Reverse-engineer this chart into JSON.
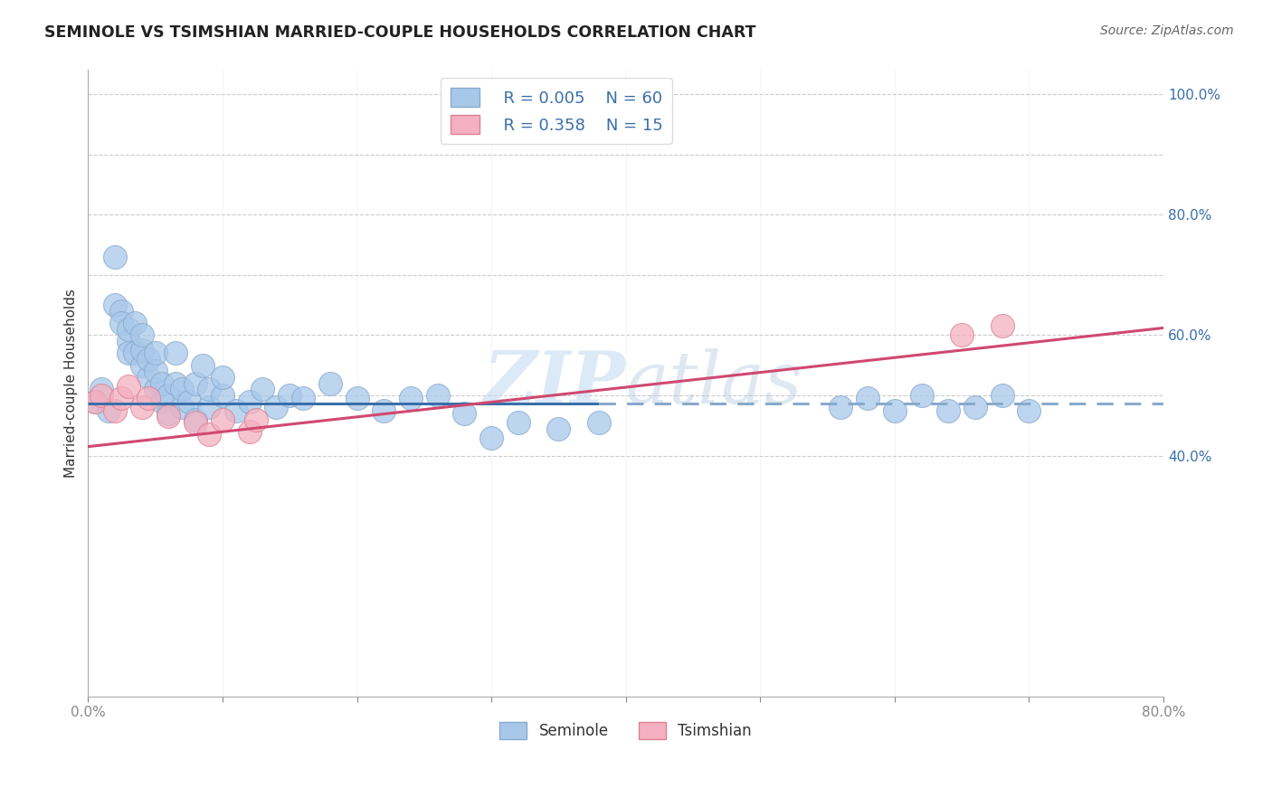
{
  "title": "SEMINOLE VS TSIMSHIAN MARRIED-COUPLE HOUSEHOLDS CORRELATION CHART",
  "source": "Source: ZipAtlas.com",
  "ylabel": "Married-couple Households",
  "background_color": "#ffffff",
  "legend_R1": "R = 0.005",
  "legend_N1": "N = 60",
  "legend_R2": "R = 0.358",
  "legend_N2": "N = 15",
  "seminole_color": "#a8c8ea",
  "tsimshian_color": "#f4b0c0",
  "seminole_edge": "#88aacc",
  "tsimshian_edge": "#dd8090",
  "line_seminole_color": "#3a6faa",
  "line_tsimshian_color": "#d04870",
  "grid_color": "#cccccc",
  "seminole_x": [
    0.005,
    0.01,
    0.015,
    0.02,
    0.02,
    0.025,
    0.025,
    0.03,
    0.03,
    0.03,
    0.035,
    0.035,
    0.04,
    0.04,
    0.04,
    0.045,
    0.045,
    0.05,
    0.05,
    0.05,
    0.055,
    0.055,
    0.06,
    0.06,
    0.065,
    0.065,
    0.07,
    0.07,
    0.075,
    0.08,
    0.08,
    0.085,
    0.09,
    0.09,
    0.1,
    0.1,
    0.11,
    0.12,
    0.13,
    0.14,
    0.15,
    0.16,
    0.18,
    0.2,
    0.22,
    0.24,
    0.26,
    0.28,
    0.3,
    0.32,
    0.35,
    0.38,
    0.56,
    0.58,
    0.6,
    0.62,
    0.64,
    0.66,
    0.68,
    0.7
  ],
  "seminole_y": [
    0.49,
    0.51,
    0.475,
    0.65,
    0.73,
    0.64,
    0.62,
    0.59,
    0.61,
    0.57,
    0.57,
    0.62,
    0.55,
    0.575,
    0.6,
    0.53,
    0.56,
    0.51,
    0.54,
    0.57,
    0.49,
    0.52,
    0.47,
    0.5,
    0.52,
    0.57,
    0.48,
    0.51,
    0.49,
    0.46,
    0.52,
    0.55,
    0.48,
    0.51,
    0.5,
    0.53,
    0.475,
    0.49,
    0.51,
    0.48,
    0.5,
    0.495,
    0.52,
    0.495,
    0.475,
    0.495,
    0.5,
    0.47,
    0.43,
    0.455,
    0.445,
    0.455,
    0.48,
    0.495,
    0.475,
    0.5,
    0.475,
    0.48,
    0.5,
    0.475
  ],
  "tsimshian_x": [
    0.005,
    0.01,
    0.02,
    0.025,
    0.03,
    0.04,
    0.045,
    0.06,
    0.08,
    0.09,
    0.1,
    0.12,
    0.125,
    0.65,
    0.68
  ],
  "tsimshian_y": [
    0.49,
    0.5,
    0.475,
    0.495,
    0.515,
    0.48,
    0.495,
    0.465,
    0.455,
    0.435,
    0.46,
    0.44,
    0.46,
    0.6,
    0.615
  ],
  "sem_line_x1": 0.0,
  "sem_line_x2": 0.38,
  "sem_line_x3": 0.8,
  "sem_line_y": 0.487,
  "tsim_line_x1": 0.0,
  "tsim_line_x2": 0.8,
  "tsim_line_y1": 0.415,
  "tsim_line_y2": 0.612,
  "xlim_min": 0.0,
  "xlim_max": 0.8,
  "ylim_min": 0.0,
  "ylim_max": 1.04,
  "ytick_vals": [
    0.4,
    0.6,
    0.8,
    1.0
  ],
  "ytick_labels": [
    "40.0%",
    "60.0%",
    "80.0%",
    "100.0%"
  ]
}
